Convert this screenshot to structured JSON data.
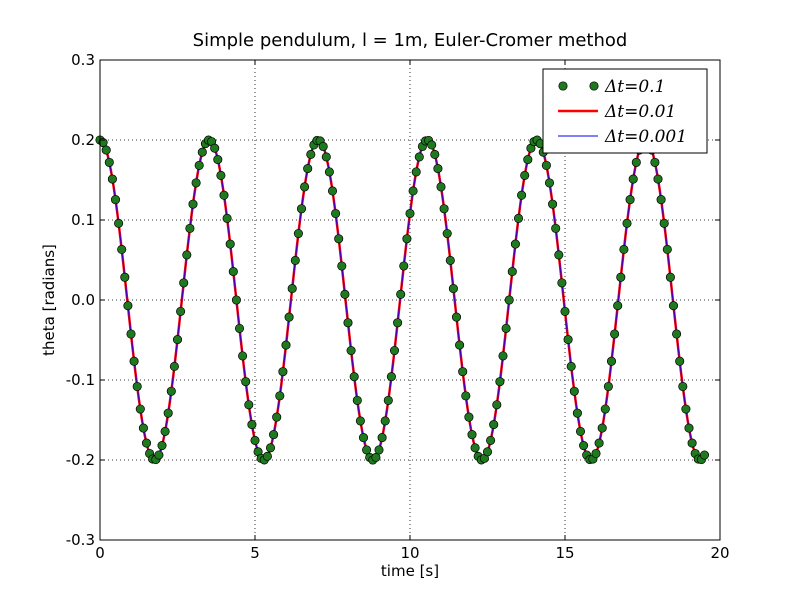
{
  "chart_data": {
    "type": "line",
    "title": "Simple pendulum, l = 1m, Euler-Cromer method",
    "xlabel": "time [s]",
    "ylabel": "theta [radians]",
    "xlim": [
      0,
      20
    ],
    "ylim": [
      -0.3,
      0.3
    ],
    "xticks": [
      0,
      5,
      10,
      15,
      20
    ],
    "xtick_labels": [
      "0",
      "5",
      "10",
      "15",
      "20"
    ],
    "yticks": [
      -0.3,
      -0.2,
      -0.1,
      0.0,
      0.1,
      0.2,
      0.3
    ],
    "ytick_labels": [
      "-0.3",
      "-0.2",
      "-0.1",
      "0.0",
      "0.1",
      "0.2",
      "0.3"
    ],
    "grid": true,
    "legend_position": "upper-right",
    "model": {
      "amplitude": 0.2,
      "period": 3.52,
      "x_start": 0,
      "x_end": 19.5
    },
    "series": [
      {
        "name": "Δt=0.1",
        "style": "markers",
        "color": "#1f7a1f",
        "step": 0.1
      },
      {
        "name": "Δt=0.01",
        "style": "line",
        "color": "#ff0000",
        "step": 0.01
      },
      {
        "name": "Δt=0.001",
        "style": "line",
        "color": "#0000ff",
        "step": 0.001
      }
    ]
  }
}
